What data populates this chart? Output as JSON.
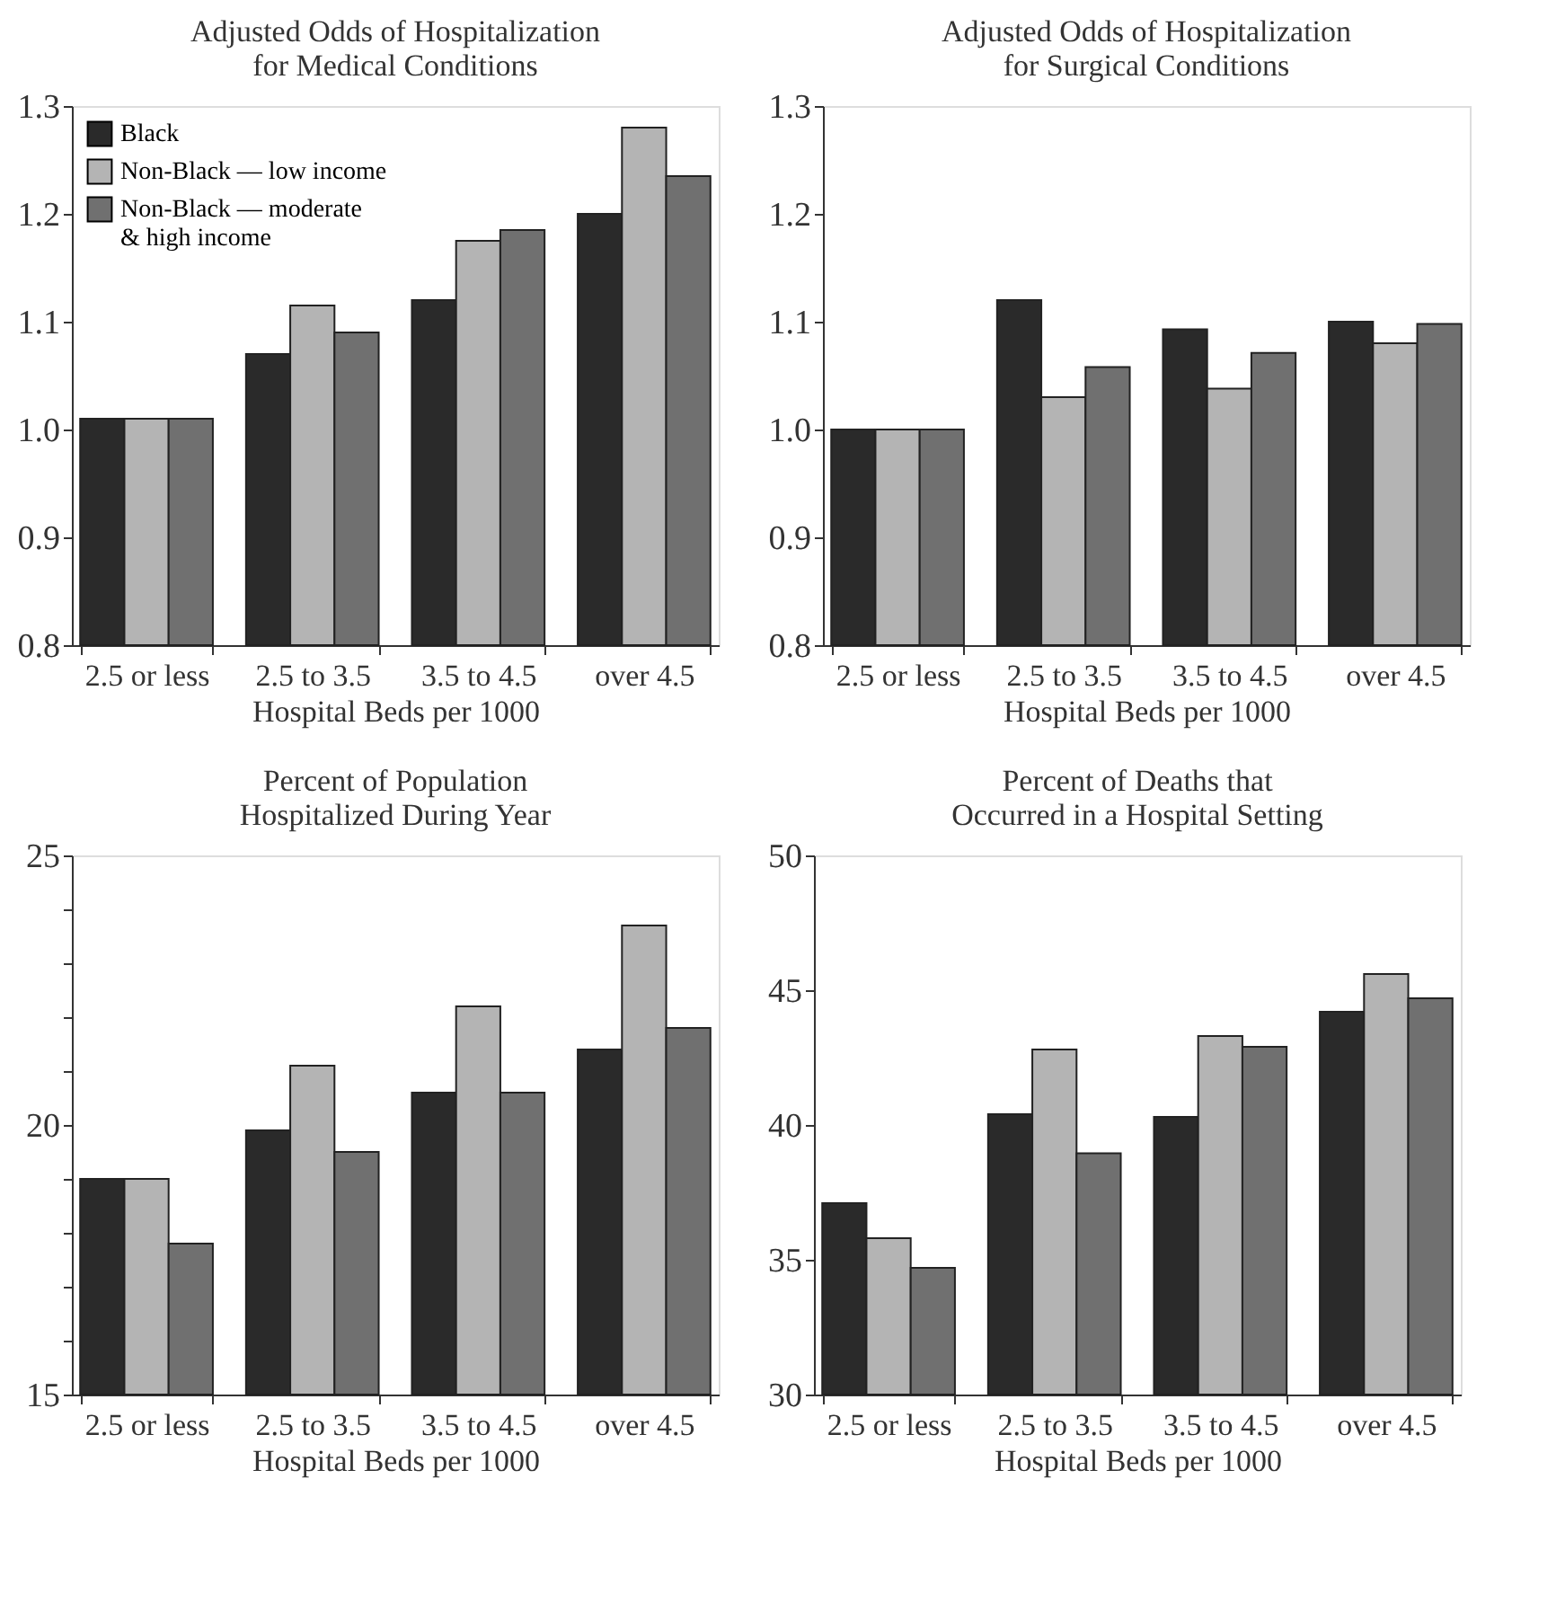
{
  "chart_data": [
    {
      "type": "bar",
      "title": "Adjusted Odds of Hospitalization for Medical Conditions",
      "xlabel": "Hospital Beds per 1000",
      "categories": [
        "2.5 or less",
        "2.5 to 3.5",
        "3.5 to 4.5",
        "over 4.5"
      ],
      "ylim": [
        0.8,
        1.3
      ],
      "yticks": [
        {
          "value": 0.8,
          "label": "0.8"
        },
        {
          "value": 0.9,
          "label": "0.9"
        },
        {
          "value": 1.0,
          "label": "1.0"
        },
        {
          "value": 1.1,
          "label": "1.1"
        },
        {
          "value": 1.2,
          "label": "1.2"
        },
        {
          "value": 1.3,
          "label": "1.3"
        }
      ],
      "legend": "top left",
      "series": [
        {
          "name": "Black",
          "color": "#2a2a2a",
          "values": [
            1.01,
            1.07,
            1.12,
            1.2
          ]
        },
        {
          "name": "Non-Black — low income",
          "color": "#b4b4b4",
          "values": [
            1.01,
            1.115,
            1.175,
            1.28
          ]
        },
        {
          "name": "Non-Black — moderate & high income",
          "color": "#707070",
          "values": [
            1.01,
            1.09,
            1.185,
            1.235
          ]
        }
      ]
    },
    {
      "type": "bar",
      "title": "Adjusted Odds of Hospitalization for Surgical Conditions",
      "xlabel": "Hospital Beds per 1000",
      "categories": [
        "2.5 or less",
        "2.5 to 3.5",
        "3.5 to 4.5",
        "over 4.5"
      ],
      "ylim": [
        0.8,
        1.3
      ],
      "yticks": [
        {
          "value": 0.8,
          "label": "0.8"
        },
        {
          "value": 0.9,
          "label": "0.9"
        },
        {
          "value": 1.0,
          "label": "1.0"
        },
        {
          "value": 1.1,
          "label": "1.1"
        },
        {
          "value": 1.2,
          "label": "1.2"
        },
        {
          "value": 1.3,
          "label": "1.3"
        }
      ],
      "series": [
        {
          "color": "#2a2a2a",
          "values": [
            1.0,
            1.12,
            1.093,
            1.1
          ]
        },
        {
          "color": "#b4b4b4",
          "values": [
            1.0,
            1.03,
            1.038,
            1.08
          ]
        },
        {
          "color": "#707070",
          "values": [
            1.0,
            1.058,
            1.071,
            1.098
          ]
        }
      ]
    },
    {
      "type": "bar",
      "title": "Percent of Population Hospitalized During Year",
      "xlabel": "Hospital Beds per 1000",
      "categories": [
        "2.5 or less",
        "2.5 to 3.5",
        "3.5 to 4.5",
        "over 4.5"
      ],
      "ylim": [
        15,
        25
      ],
      "yticks": [
        15,
        {
          "value": 16,
          "label": null
        },
        {
          "value": 17,
          "label": null
        },
        {
          "value": 18,
          "label": null
        },
        {
          "value": 19,
          "label": null
        },
        20,
        {
          "value": 21,
          "label": null
        },
        {
          "value": 22,
          "label": null
        },
        {
          "value": 23,
          "label": null
        },
        {
          "value": 24,
          "label": null
        },
        25
      ],
      "series": [
        {
          "color": "#2a2a2a",
          "values": [
            19.0,
            19.9,
            20.6,
            21.4
          ]
        },
        {
          "color": "#b4b4b4",
          "values": [
            19.0,
            21.1,
            22.2,
            23.7
          ]
        },
        {
          "color": "#707070",
          "values": [
            17.8,
            19.5,
            20.6,
            21.8
          ]
        }
      ]
    },
    {
      "type": "bar",
      "title": "Percent of Deaths that Occurred in a Hospital Setting",
      "xlabel": "Hospital Beds per 1000",
      "categories": [
        "2.5 or less",
        "2.5 to 3.5",
        "3.5 to 4.5",
        "over 4.5"
      ],
      "ylim": [
        30,
        50
      ],
      "yticks": [
        30,
        35,
        40,
        45,
        50
      ],
      "series": [
        {
          "color": "#2a2a2a",
          "values": [
            37.1,
            40.4,
            40.3,
            44.2
          ]
        },
        {
          "color": "#b4b4b4",
          "values": [
            35.8,
            42.8,
            43.3,
            45.6
          ]
        },
        {
          "color": "#707070",
          "values": [
            34.7,
            38.95,
            42.9,
            44.7
          ]
        }
      ]
    }
  ]
}
